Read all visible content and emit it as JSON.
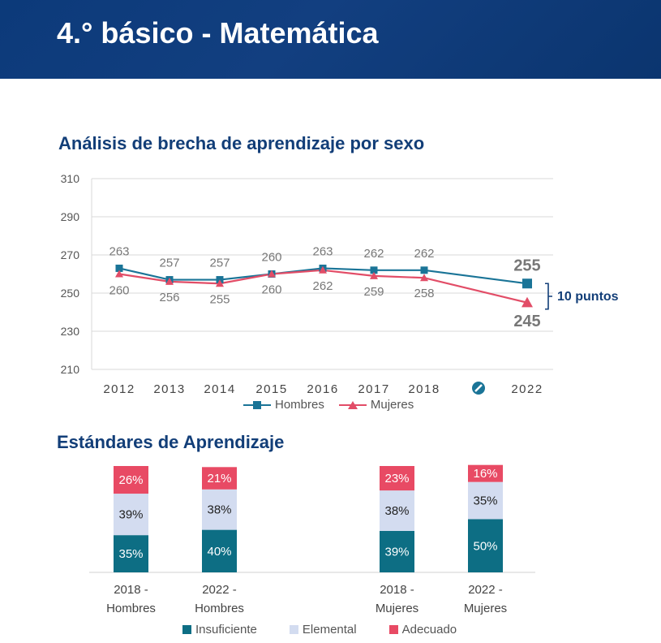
{
  "header": {
    "title": "4.° básico - Matemática"
  },
  "line_section": {
    "title": "Análisis de brecha de aprendizaje por sexo",
    "gap_label": "10 puntos"
  },
  "bar_section": {
    "title": "Estándares de Aprendizaje"
  },
  "colors": {
    "hombres": "#1a7497",
    "mujeres": "#e24d67",
    "insuficiente": "#0d6e84",
    "elemental": "#d3dcf0",
    "adecuado": "#e84a64",
    "banner": "#0c3a7a"
  },
  "chart_data": [
    {
      "type": "line",
      "title": "Análisis de brecha de aprendizaje por sexo",
      "categories": [
        "2012",
        "2013",
        "2014",
        "2015",
        "2016",
        "2017",
        "2018",
        "2022"
      ],
      "break_marker": "no-measurement-icon",
      "ylim": [
        210,
        310
      ],
      "yticks": [
        "210",
        "230",
        "250",
        "270",
        "290",
        "310"
      ],
      "grid": true,
      "legend": "bottom",
      "series": [
        {
          "name": "Hombres",
          "values": [
            263,
            257,
            257,
            260,
            263,
            262,
            262,
            255
          ],
          "labels": [
            "263",
            "257",
            "257",
            "260",
            "263",
            "262",
            "262",
            "255"
          ]
        },
        {
          "name": "Mujeres",
          "values": [
            260,
            256,
            255,
            260,
            262,
            259,
            258,
            245
          ],
          "labels": [
            "260",
            "256",
            "255",
            "260",
            "262",
            "259",
            "258",
            "245"
          ]
        }
      ],
      "annotation": "10 puntos"
    },
    {
      "type": "bar",
      "stacked": true,
      "title": "Estándares de Aprendizaje",
      "categories": [
        "2018 - Hombres",
        "2022 - Hombres",
        "2018 - Mujeres",
        "2022 - Mujeres"
      ],
      "category_lines": [
        [
          "2018 -",
          "Hombres"
        ],
        [
          "2022 -",
          "Hombres"
        ],
        [
          "2018 -",
          "Mujeres"
        ],
        [
          "2022 -",
          "Mujeres"
        ]
      ],
      "legend": "bottom",
      "series": [
        {
          "name": "Insuficiente",
          "values": [
            35,
            40,
            39,
            50
          ],
          "labels": [
            "35%",
            "40%",
            "39%",
            "50%"
          ]
        },
        {
          "name": "Elemental",
          "values": [
            39,
            38,
            38,
            35
          ],
          "labels": [
            "39%",
            "38%",
            "38%",
            "35%"
          ]
        },
        {
          "name": "Adecuado",
          "values": [
            26,
            21,
            23,
            16
          ],
          "labels": [
            "26%",
            "21%",
            "23%",
            "16%"
          ]
        }
      ]
    }
  ]
}
